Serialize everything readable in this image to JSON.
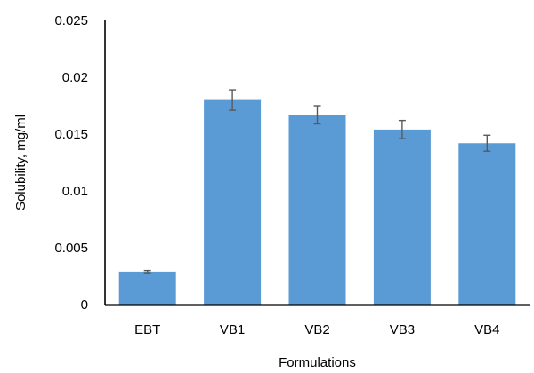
{
  "chart_data": {
    "type": "bar",
    "categories": [
      "EBT",
      "VB1",
      "VB2",
      "VB3",
      "VB4"
    ],
    "values": [
      0.0029,
      0.018,
      0.0167,
      0.0154,
      0.0142
    ],
    "errors": [
      0.0001,
      0.0009,
      0.0008,
      0.0008,
      0.0007
    ],
    "xlabel": "Formulations",
    "ylabel": "Solubility, mg/ml",
    "ylim": [
      0,
      0.025
    ],
    "yticks": [
      "0",
      "0.005",
      "0.01",
      "0.015",
      "0.02",
      "0.025"
    ],
    "grid": false,
    "legend": "none",
    "bar_color": "#5b9bd5",
    "error_bar_color": "#595959",
    "axis_color": "#000000"
  }
}
